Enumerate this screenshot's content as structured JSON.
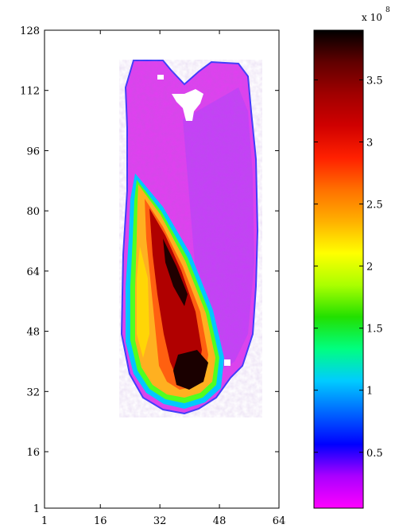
{
  "chart_data": [
    {
      "type": "heatmap",
      "title": "",
      "xlabel": "",
      "ylabel": "",
      "xlim": [
        1,
        64
      ],
      "ylim": [
        1,
        128
      ],
      "x_ticks": [
        "1",
        "16",
        "32",
        "48",
        "64"
      ],
      "y_ticks": [
        "1",
        "16",
        "32",
        "48",
        "64",
        "80",
        "96",
        "112",
        "128"
      ],
      "background": "#ffffff",
      "regions": [
        {
          "name": "outer body",
          "level": 0.25
        },
        {
          "name": "top notch",
          "level": 0.0
        },
        {
          "name": "inner lobe",
          "level": 2.3
        },
        {
          "name": "inner lobe core",
          "level": 3.3
        },
        {
          "name": "inner lobe bottom",
          "level": 3.8
        }
      ]
    },
    {
      "type": "colorbar",
      "scale_label": "x 10",
      "scale_exponent": "8",
      "range": [
        0.05,
        3.9
      ],
      "tick_values": [
        0.5,
        1,
        1.5,
        2,
        2.5,
        3,
        3.5
      ],
      "tick_labels": [
        "0.5",
        "1",
        "1.5",
        "2",
        "2.5",
        "3",
        "3.5"
      ],
      "colormap": [
        "#ff00ff",
        "#aa00ff",
        "#0000ff",
        "#0066ff",
        "#00ccff",
        "#00ff80",
        "#22e000",
        "#aaff00",
        "#ffff00",
        "#ffb000",
        "#ff7000",
        "#ff2000",
        "#d00000",
        "#a00000",
        "#600000",
        "#000000"
      ]
    }
  ]
}
